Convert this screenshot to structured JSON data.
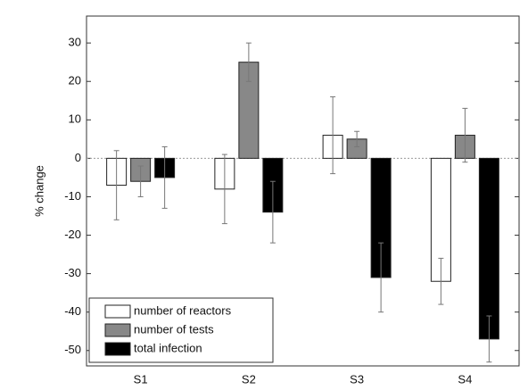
{
  "chart_data": {
    "type": "bar",
    "y_label": "% change",
    "categories": [
      "S1",
      "S2",
      "S3",
      "S4"
    ],
    "series": [
      {
        "name": "number of reactors",
        "color": "#ffffff",
        "values": [
          -7,
          -8,
          6,
          -32
        ],
        "errors": [
          9,
          9,
          10,
          6
        ]
      },
      {
        "name": "number of tests",
        "color": "#888888",
        "values": [
          -6,
          25,
          5,
          6
        ],
        "errors": [
          4,
          5,
          2,
          7
        ]
      },
      {
        "name": "total infection",
        "color": "#000000",
        "values": [
          -5,
          -14,
          -31,
          -47
        ],
        "errors": [
          8,
          8,
          9,
          6
        ]
      }
    ],
    "ylim": [
      -54,
      37
    ],
    "yticks": [
      -50,
      -40,
      -30,
      -20,
      -10,
      0,
      10,
      20,
      30
    ],
    "zero_line": true,
    "legend": "lower-left"
  }
}
